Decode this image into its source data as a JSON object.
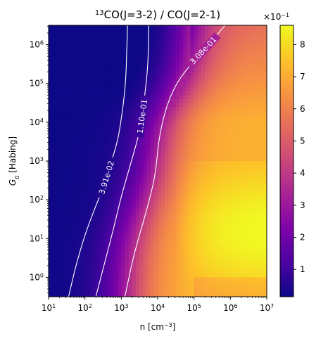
{
  "chart_data": {
    "type": "heatmap",
    "title": {
      "iso": "13",
      "rest": "CO(J=3-2) / CO(J=2-1)"
    },
    "xlabel": {
      "prefix": "n [cm",
      "sup": "−3",
      "suffix": "]"
    },
    "ylabel": {
      "main": "G",
      "sub": "0",
      "suffix": " [Habing]"
    },
    "x_log10_range": [
      1,
      7
    ],
    "y_log10_range": [
      -0.5,
      6.5
    ],
    "x_ticks": [
      {
        "exp": 1,
        "label_base": "10",
        "label_exp": "1"
      },
      {
        "exp": 2,
        "label_base": "10",
        "label_exp": "2"
      },
      {
        "exp": 3,
        "label_base": "10",
        "label_exp": "3"
      },
      {
        "exp": 4,
        "label_base": "10",
        "label_exp": "4"
      },
      {
        "exp": 5,
        "label_base": "10",
        "label_exp": "5"
      },
      {
        "exp": 6,
        "label_base": "10",
        "label_exp": "6"
      },
      {
        "exp": 7,
        "label_base": "10",
        "label_exp": "7"
      }
    ],
    "y_ticks": [
      {
        "exp": 0,
        "label_base": "10",
        "label_exp": "0"
      },
      {
        "exp": 1,
        "label_base": "10",
        "label_exp": "1"
      },
      {
        "exp": 2,
        "label_base": "10",
        "label_exp": "2"
      },
      {
        "exp": 3,
        "label_base": "10",
        "label_exp": "3"
      },
      {
        "exp": 4,
        "label_base": "10",
        "label_exp": "4"
      },
      {
        "exp": 5,
        "label_base": "10",
        "label_exp": "5"
      },
      {
        "exp": 6,
        "label_base": "10",
        "label_exp": "6"
      }
    ],
    "colorbar": {
      "colormap": "plasma",
      "range": [
        0.015,
        0.86
      ],
      "ticks": [
        0.1,
        0.2,
        0.3,
        0.4,
        0.5,
        0.6,
        0.7,
        0.8
      ],
      "tick_labels": [
        "1",
        "2",
        "3",
        "4",
        "5",
        "6",
        "7",
        "8"
      ],
      "offset_label": {
        "base": "×10",
        "exp": "−1"
      }
    },
    "grid": {
      "nx": 60,
      "ny": 70
    },
    "contours": [
      {
        "label": "3.91e-02",
        "points": [
          [
            1.55,
            -0.5
          ],
          [
            1.75,
            0.3
          ],
          [
            2.0,
            1.1
          ],
          [
            2.28,
            1.8
          ],
          [
            2.5,
            2.3
          ],
          [
            2.68,
            2.85
          ],
          [
            2.9,
            3.5
          ],
          [
            3.02,
            4.2
          ],
          [
            3.12,
            5.0
          ],
          [
            3.15,
            5.8
          ],
          [
            3.17,
            6.5
          ]
        ],
        "label_at": [
          2.68,
          2.85
        ]
      },
      {
        "label": "1.10e-01",
        "points": [
          [
            2.3,
            -0.5
          ],
          [
            2.55,
            0.4
          ],
          [
            2.8,
            1.3
          ],
          [
            3.0,
            2.1
          ],
          [
            3.28,
            3.0
          ],
          [
            3.52,
            3.8
          ],
          [
            3.62,
            4.5
          ],
          [
            3.72,
            5.3
          ],
          [
            3.75,
            6.0
          ],
          [
            3.75,
            6.5
          ]
        ],
        "label_at": [
          3.62,
          4.5
        ]
      },
      {
        "label": "3.08e-01",
        "points": [
          [
            3.1,
            -0.5
          ],
          [
            3.3,
            0.4
          ],
          [
            3.5,
            1.1
          ],
          [
            3.75,
            1.9
          ],
          [
            3.95,
            2.7
          ],
          [
            4.02,
            3.5
          ],
          [
            4.2,
            4.3
          ],
          [
            4.5,
            5.0
          ],
          [
            5.0,
            5.6
          ],
          [
            5.5,
            6.1
          ],
          [
            5.85,
            6.5
          ]
        ],
        "label_at": [
          5.0,
          5.6
        ]
      }
    ]
  }
}
